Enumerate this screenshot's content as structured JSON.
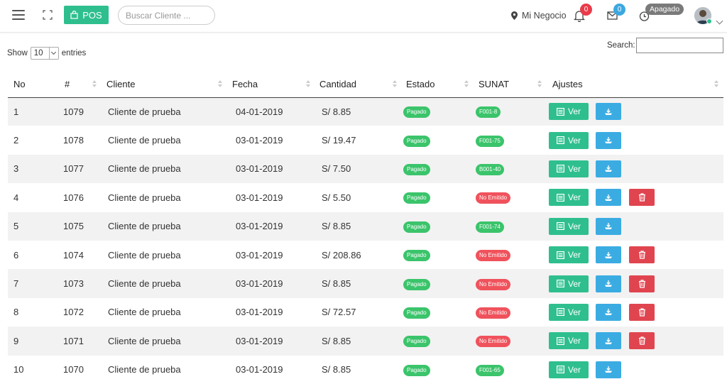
{
  "topbar": {
    "pos_label": "POS",
    "search_placeholder": "Buscar Cliente ...",
    "business_label": "Mi Negocio",
    "notifications_count": "0",
    "messages_count": "0",
    "status_label": "Apagado"
  },
  "colors": {
    "accent": "#2fbf8f",
    "info": "#3bace2",
    "danger": "#e0454f",
    "badge_red": "#ea3b4a",
    "badge_blue": "#3ca8e0"
  },
  "table_controls": {
    "show_label": "Show",
    "entries_value": "10",
    "entries_label": "entries",
    "search_label": "Search:"
  },
  "table": {
    "headers": [
      "No",
      "#",
      "Cliente",
      "Fecha",
      "Cantidad",
      "Estado",
      "SUNAT",
      "Ajustes"
    ],
    "ver_label": "Ver",
    "rows": [
      {
        "no": "1",
        "id": "1079",
        "cliente": "Cliente de prueba",
        "fecha": "04-01-2019",
        "cantidad": "S/ 8.85",
        "estado": "Pagado",
        "sunat": "F001-8",
        "sunat_ok": true,
        "delete": false
      },
      {
        "no": "2",
        "id": "1078",
        "cliente": "Cliente de prueba",
        "fecha": "03-01-2019",
        "cantidad": "S/ 19.47",
        "estado": "Pagado",
        "sunat": "F001-75",
        "sunat_ok": true,
        "delete": false
      },
      {
        "no": "3",
        "id": "1077",
        "cliente": "Cliente de prueba",
        "fecha": "03-01-2019",
        "cantidad": "S/ 7.50",
        "estado": "Pagado",
        "sunat": "B001-40",
        "sunat_ok": true,
        "delete": false
      },
      {
        "no": "4",
        "id": "1076",
        "cliente": "Cliente de prueba",
        "fecha": "03-01-2019",
        "cantidad": "S/ 5.50",
        "estado": "Pagado",
        "sunat": "No Emitido",
        "sunat_ok": false,
        "delete": true
      },
      {
        "no": "5",
        "id": "1075",
        "cliente": "Cliente de prueba",
        "fecha": "03-01-2019",
        "cantidad": "S/ 8.85",
        "estado": "Pagado",
        "sunat": "F001-74",
        "sunat_ok": true,
        "delete": false
      },
      {
        "no": "6",
        "id": "1074",
        "cliente": "Cliente de prueba",
        "fecha": "03-01-2019",
        "cantidad": "S/ 208.86",
        "estado": "Pagado",
        "sunat": "No Emitido",
        "sunat_ok": false,
        "delete": true
      },
      {
        "no": "7",
        "id": "1073",
        "cliente": "Cliente de prueba",
        "fecha": "03-01-2019",
        "cantidad": "S/ 8.85",
        "estado": "Pagado",
        "sunat": "No Emitido",
        "sunat_ok": false,
        "delete": true
      },
      {
        "no": "8",
        "id": "1072",
        "cliente": "Cliente de prueba",
        "fecha": "03-01-2019",
        "cantidad": "S/ 72.57",
        "estado": "Pagado",
        "sunat": "No Emitido",
        "sunat_ok": false,
        "delete": true
      },
      {
        "no": "9",
        "id": "1071",
        "cliente": "Cliente de prueba",
        "fecha": "03-01-2019",
        "cantidad": "S/ 8.85",
        "estado": "Pagado",
        "sunat": "No Emitido",
        "sunat_ok": false,
        "delete": true
      },
      {
        "no": "10",
        "id": "1070",
        "cliente": "Cliente de prueba",
        "fecha": "03-01-2019",
        "cantidad": "S/ 8.85",
        "estado": "Pagado",
        "sunat": "F001-65",
        "sunat_ok": true,
        "delete": false
      }
    ]
  }
}
